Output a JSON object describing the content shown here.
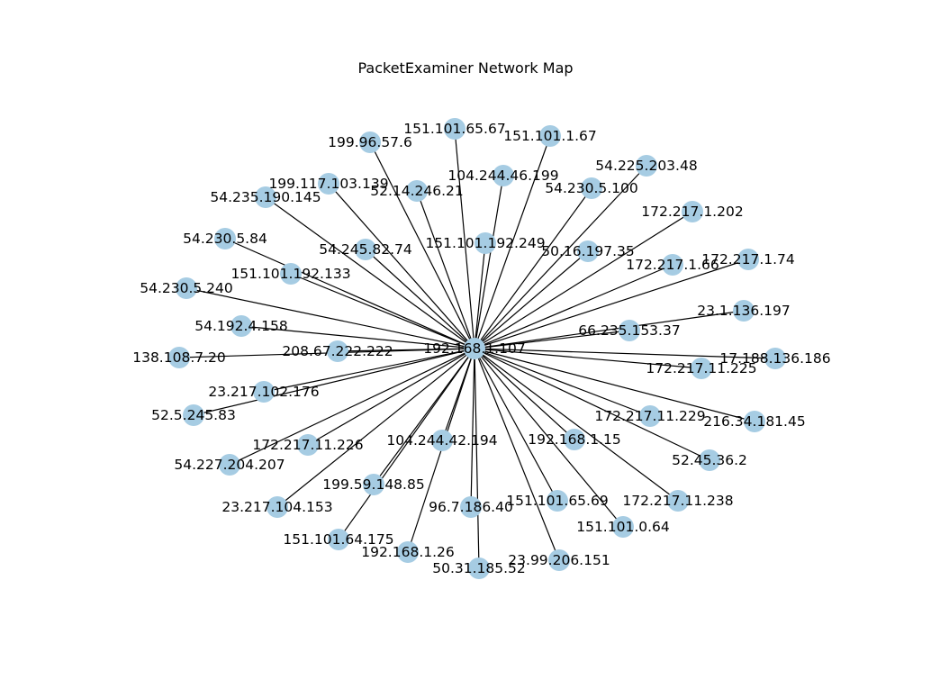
{
  "title": "PacketExaminer Network Map",
  "colors": {
    "node": "#a6cce3",
    "edge": "#000000",
    "text": "#000000",
    "background": "#ffffff"
  },
  "hub": "192.168.1.107",
  "nodes": [
    {
      "id": "192.168.1.107"
    },
    {
      "id": "151.101.65.67"
    },
    {
      "id": "151.101.1.67"
    },
    {
      "id": "199.96.57.6"
    },
    {
      "id": "104.244.46.199"
    },
    {
      "id": "54.225.203.48"
    },
    {
      "id": "199.117.103.139"
    },
    {
      "id": "52.14.246.21"
    },
    {
      "id": "54.230.5.100"
    },
    {
      "id": "54.235.190.145"
    },
    {
      "id": "172.217.1.202"
    },
    {
      "id": "54.230.5.84"
    },
    {
      "id": "54.245.82.74"
    },
    {
      "id": "151.101.192.249"
    },
    {
      "id": "50.16.197.35"
    },
    {
      "id": "172.217.1.74"
    },
    {
      "id": "172.217.1.66"
    },
    {
      "id": "151.101.192.133"
    },
    {
      "id": "54.230.5.240"
    },
    {
      "id": "23.1.136.197"
    },
    {
      "id": "54.192.4.158"
    },
    {
      "id": "66.235.153.37"
    },
    {
      "id": "208.67.222.222"
    },
    {
      "id": "138.108.7.20"
    },
    {
      "id": "17.188.136.186"
    },
    {
      "id": "172.217.11.225"
    },
    {
      "id": "23.217.102.176"
    },
    {
      "id": "52.5.245.83"
    },
    {
      "id": "172.217.11.229"
    },
    {
      "id": "216.34.181.45"
    },
    {
      "id": "192.168.1.15"
    },
    {
      "id": "104.244.42.194"
    },
    {
      "id": "172.217.11.226"
    },
    {
      "id": "52.45.36.2"
    },
    {
      "id": "54.227.204.207"
    },
    {
      "id": "199.59.148.85"
    },
    {
      "id": "151.101.65.69"
    },
    {
      "id": "172.217.11.238"
    },
    {
      "id": "23.217.104.153"
    },
    {
      "id": "96.7.186.40"
    },
    {
      "id": "151.101.0.64"
    },
    {
      "id": "151.101.64.175"
    },
    {
      "id": "192.168.1.26"
    },
    {
      "id": "23.99.206.151"
    },
    {
      "id": "50.31.185.52"
    }
  ]
}
